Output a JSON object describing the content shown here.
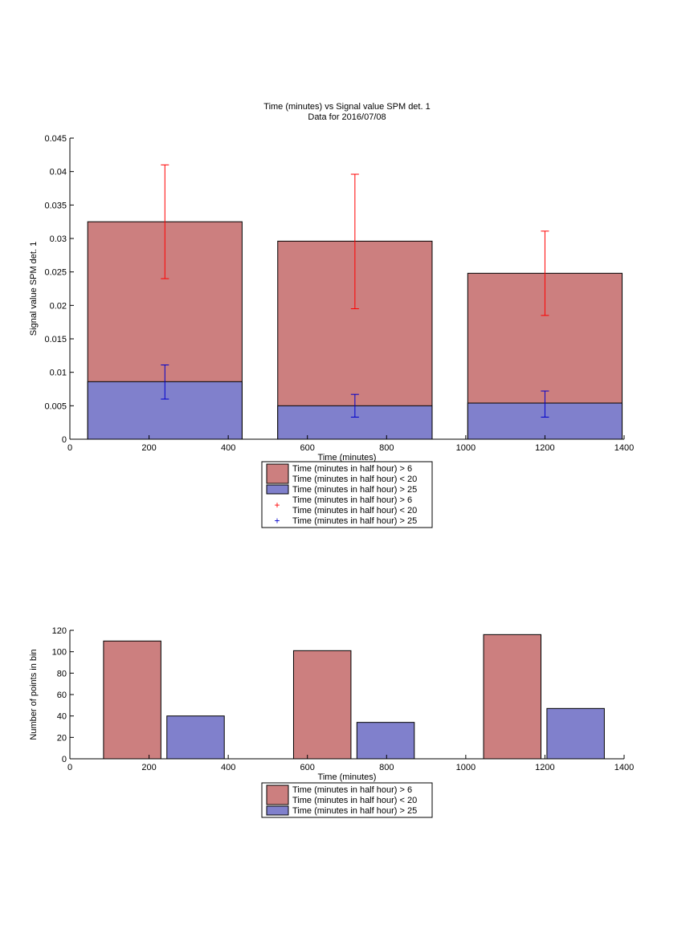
{
  "figure": {
    "title_line1": "Time (minutes) vs Signal value SPM det. 1",
    "title_line2": "Data for 2016/07/08"
  },
  "colors": {
    "red_fill": "#cc7f7f",
    "blue_fill": "#8080cc",
    "red_err": "#ff0000",
    "blue_err": "#0000cc"
  },
  "chart_data": [
    {
      "type": "bar",
      "xlabel": "Time (minutes)",
      "ylabel": "Signal value SPM det. 1",
      "xlim": [
        0,
        1400
      ],
      "ylim": [
        0,
        0.045
      ],
      "x_ticks": [
        "0",
        "200",
        "400",
        "600",
        "800",
        "1000",
        "1200",
        "1400"
      ],
      "y_ticks": [
        "0",
        "0.005",
        "0.01",
        "0.015",
        "0.02",
        "0.025",
        "0.03",
        "0.035",
        "0.04",
        "0.045"
      ],
      "stacked_overlay": true,
      "bars": [
        {
          "x_start": 45,
          "x_end": 435,
          "red_value": 0.0325,
          "blue_value": 0.0086
        },
        {
          "x_start": 525,
          "x_end": 915,
          "red_value": 0.0296,
          "blue_value": 0.005
        },
        {
          "x_start": 1005,
          "x_end": 1395,
          "red_value": 0.0248,
          "blue_value": 0.0054
        }
      ],
      "error_bars": [
        {
          "series": "red",
          "x": 240,
          "low": 0.024,
          "high": 0.041
        },
        {
          "series": "red",
          "x": 720,
          "low": 0.0195,
          "high": 0.0396
        },
        {
          "series": "red",
          "x": 1200,
          "low": 0.0185,
          "high": 0.0311
        },
        {
          "series": "blue",
          "x": 240,
          "low": 0.006,
          "high": 0.0111
        },
        {
          "series": "blue",
          "x": 720,
          "low": 0.0033,
          "high": 0.0067
        },
        {
          "series": "blue",
          "x": 1200,
          "low": 0.0033,
          "high": 0.0072
        }
      ],
      "legend": [
        {
          "marker": "patch-red",
          "line1": "Time (minutes in half hour) > 6",
          "line2": "Time (minutes in half hour) < 20"
        },
        {
          "marker": "patch-blue",
          "line1": "Time (minutes in half hour) > 25",
          "line2": ""
        },
        {
          "marker": "plus-red",
          "line1": "Time (minutes in half hour) > 6",
          "line2": "Time (minutes in half hour) < 20"
        },
        {
          "marker": "plus-blue",
          "line1": "Time (minutes in half hour) > 25",
          "line2": ""
        }
      ]
    },
    {
      "type": "bar",
      "xlabel": "Time (minutes)",
      "ylabel": "Number of points in bin",
      "xlim": [
        0,
        1400
      ],
      "ylim": [
        0,
        120
      ],
      "x_ticks": [
        "0",
        "200",
        "400",
        "600",
        "800",
        "1000",
        "1200",
        "1400"
      ],
      "y_ticks": [
        "0",
        "20",
        "40",
        "60",
        "80",
        "100",
        "120"
      ],
      "bars": [
        {
          "series": "red",
          "x_start": 85,
          "x_end": 230,
          "value": 110
        },
        {
          "series": "blue",
          "x_start": 245,
          "x_end": 390,
          "value": 40
        },
        {
          "series": "red",
          "x_start": 565,
          "x_end": 710,
          "value": 101
        },
        {
          "series": "blue",
          "x_start": 725,
          "x_end": 870,
          "value": 34
        },
        {
          "series": "red",
          "x_start": 1045,
          "x_end": 1190,
          "value": 116
        },
        {
          "series": "blue",
          "x_start": 1205,
          "x_end": 1350,
          "value": 47
        }
      ],
      "legend": [
        {
          "marker": "patch-red",
          "line1": "Time (minutes in half hour) > 6",
          "line2": "Time (minutes in half hour) < 20"
        },
        {
          "marker": "patch-blue",
          "line1": "Time (minutes in half hour) > 25",
          "line2": ""
        }
      ]
    }
  ]
}
